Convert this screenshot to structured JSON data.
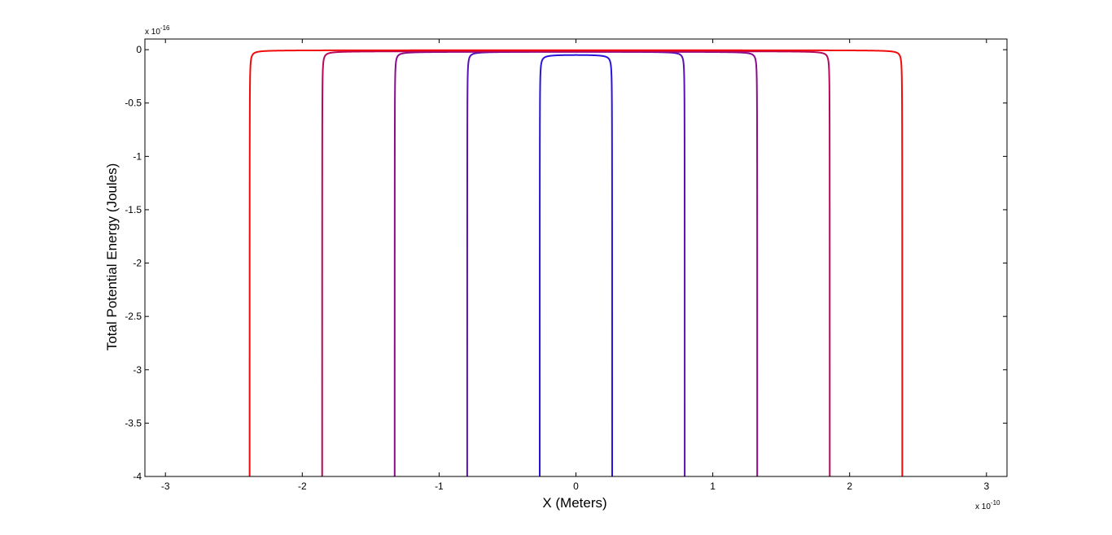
{
  "chart_data": {
    "type": "line",
    "title": "",
    "xlabel": "X (Meters)",
    "ylabel": "Total Potential Energy (Joules)",
    "x_multiplier": {
      "base": "x 10",
      "exponent": "-10"
    },
    "y_multiplier": {
      "base": "x 10",
      "exponent": "-16"
    },
    "xlim": [
      -3.15,
      3.15
    ],
    "ylim": [
      -4,
      0.1
    ],
    "x_ticks": [
      -3,
      -2,
      -1,
      0,
      1,
      2,
      3
    ],
    "x_tick_labels": [
      "-3",
      "-2",
      "-1",
      "0",
      "1",
      "2",
      "3"
    ],
    "y_ticks": [
      0,
      -0.5,
      -1,
      -1.5,
      -2,
      -2.5,
      -3,
      -3.5,
      -4
    ],
    "y_tick_labels": [
      "0",
      "-0.5",
      "-1",
      "-1.5",
      "-2",
      "-2.5",
      "-3",
      "-3.5",
      "-4"
    ],
    "grid": false,
    "legend": "none",
    "series": [
      {
        "color": "#2a14dc",
        "singularities": [
          -0.265,
          0.265
        ],
        "peak": -0.05,
        "k": 0.001
      },
      {
        "color": "#5a10b6",
        "singularities": [
          -0.795,
          0.795
        ],
        "peak": -0.02,
        "k": 0.00094
      },
      {
        "color": "#8a0c8c",
        "singularities": [
          -1.325,
          1.325
        ],
        "peak": -0.02,
        "k": 0.00094
      },
      {
        "color": "#b8085c",
        "singularities": [
          -1.855,
          1.855
        ],
        "peak": -0.015,
        "k": 0.00094
      },
      {
        "color": "#f20a0a",
        "singularities": [
          -2.385,
          2.385
        ],
        "peak": -0.005,
        "k": 0.00094
      }
    ]
  }
}
